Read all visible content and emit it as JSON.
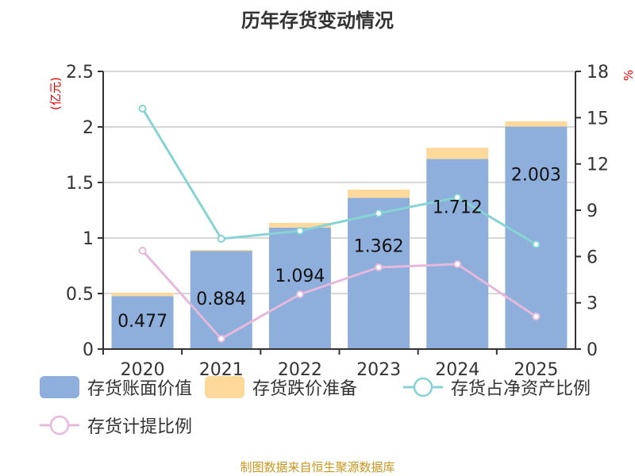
{
  "chart_data": {
    "type": "bar",
    "title": "历年存货变动情况",
    "categories": [
      "2020",
      "2021",
      "2022",
      "2023",
      "2024",
      "2025"
    ],
    "ylabel_left": "(亿元)",
    "ylabel_right": "%",
    "ylim_left": [
      0,
      2.5
    ],
    "yticks_left": [
      "0",
      "0.5",
      "1",
      "1.5",
      "2",
      "2.5"
    ],
    "ylim_right": [
      0,
      18
    ],
    "yticks_right": [
      "0",
      "3",
      "6",
      "9",
      "12",
      "15",
      "18"
    ],
    "series": [
      {
        "name": "存货账面价值",
        "type": "bar",
        "stack": true,
        "color": "#8eaedb",
        "values": [
          0.477,
          0.884,
          1.094,
          1.362,
          1.712,
          2.003
        ],
        "labels": [
          "0.477",
          "0.884",
          "1.094",
          "1.362",
          "1.712",
          "2.003"
        ]
      },
      {
        "name": "存货跌价准备",
        "type": "bar",
        "stack": true,
        "color": "#fdd99b",
        "values": [
          0.03,
          0.009,
          0.042,
          0.074,
          0.1,
          0.047
        ]
      },
      {
        "name": "存货占净资产比例",
        "type": "line",
        "axis": "right",
        "color": "#86d3d4",
        "values": [
          15.59,
          7.15,
          7.66,
          8.8,
          9.83,
          6.79
        ]
      },
      {
        "name": "存货计提比例",
        "type": "line",
        "axis": "right",
        "color": "#e5b9db",
        "values": [
          6.38,
          0.67,
          3.55,
          5.3,
          5.5,
          2.11
        ]
      }
    ],
    "grid": true,
    "legend": "bottom"
  },
  "source": "制图数据来自恒生聚源数据库"
}
